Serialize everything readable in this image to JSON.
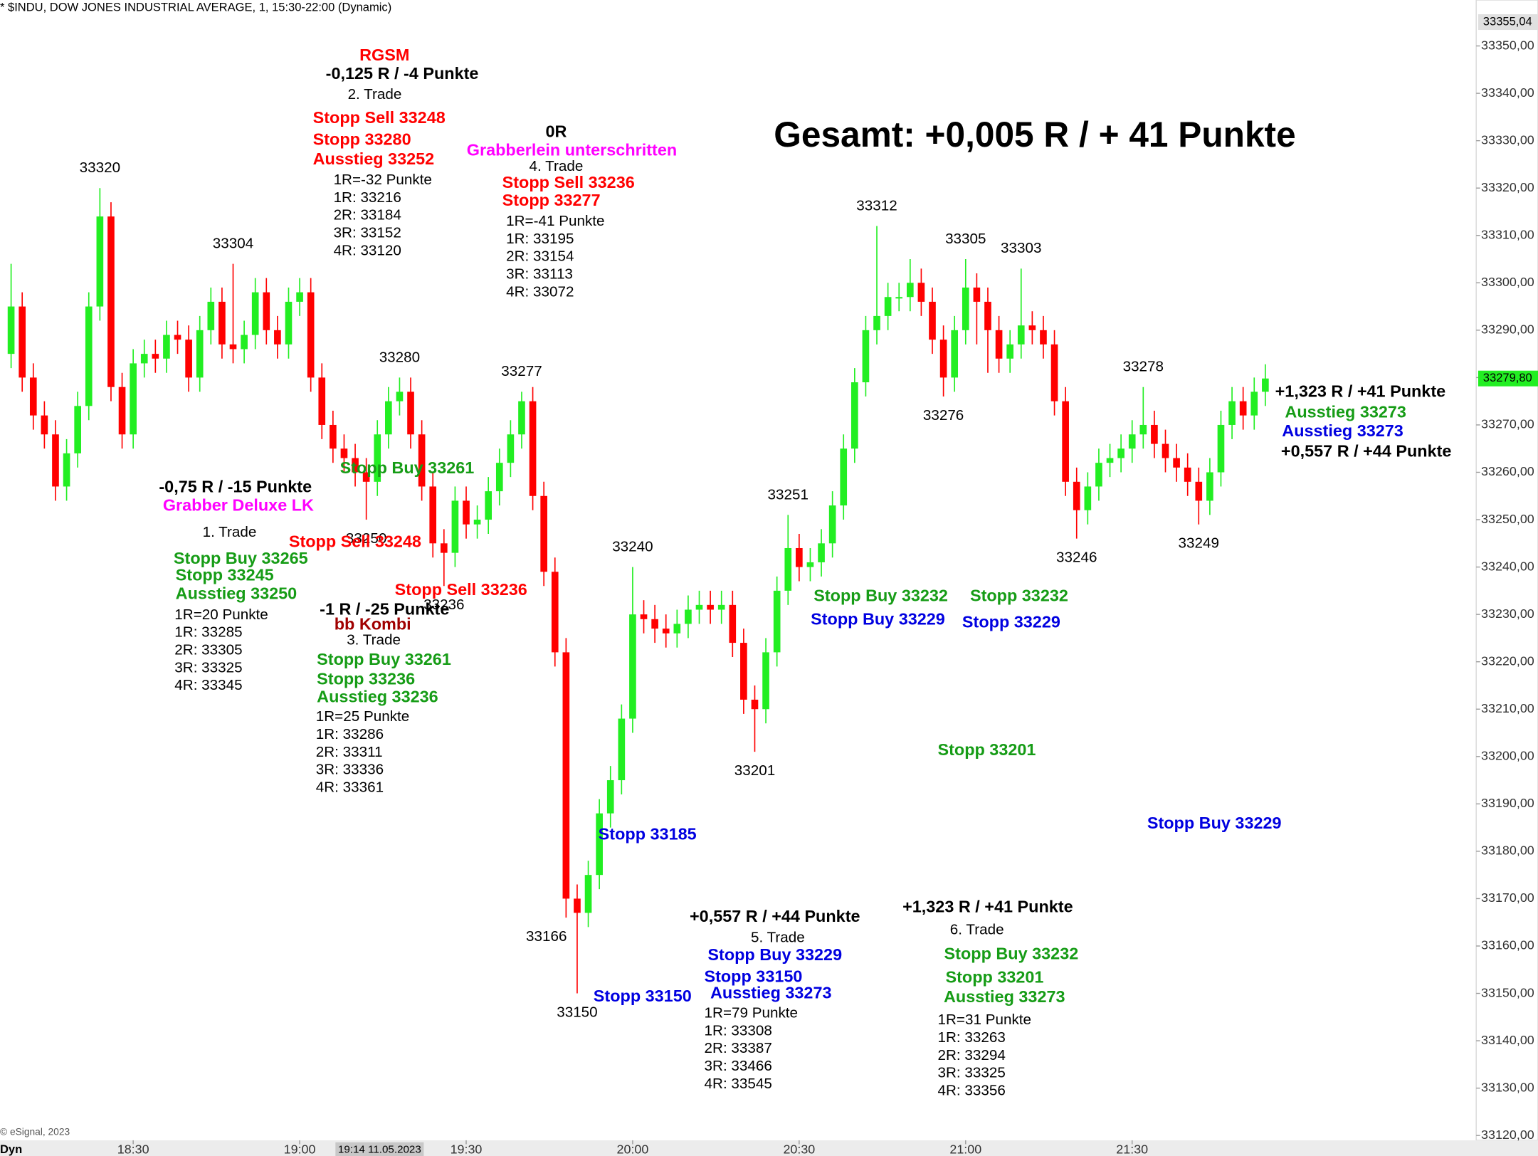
{
  "chart_data": {
    "type": "candlestick",
    "title": "* $INDU, DOW JONES INDUSTRIAL AVERAGE, 1, 15:30-22:00 (Dynamic)",
    "copyright": "© eSignal, 2023",
    "mode_label": "Dyn",
    "cursor_label": "19:14 11.05.2023",
    "up_color": "#22ee22",
    "down_color": "#ff0000",
    "x": [
      "18:08",
      "18:10",
      "18:12",
      "18:14",
      "18:16",
      "18:18",
      "18:20",
      "18:22",
      "18:24",
      "18:26",
      "18:28",
      "18:30",
      "18:32",
      "18:34",
      "18:36",
      "18:38",
      "18:40",
      "18:42",
      "18:44",
      "18:46",
      "18:48",
      "18:50",
      "18:52",
      "18:54",
      "18:56",
      "18:58",
      "19:00",
      "19:02",
      "19:04",
      "19:06",
      "19:08",
      "19:10",
      "19:12",
      "19:14",
      "19:16",
      "19:18",
      "19:20",
      "19:22",
      "19:24",
      "19:26",
      "19:28",
      "19:30",
      "19:32",
      "19:34",
      "19:36",
      "19:38",
      "19:40",
      "19:42",
      "19:44",
      "19:46",
      "19:48",
      "19:50",
      "19:52",
      "19:54",
      "19:56",
      "19:58",
      "20:00",
      "20:02",
      "20:04",
      "20:06",
      "20:08",
      "20:10",
      "20:12",
      "20:14",
      "20:16",
      "20:18",
      "20:20",
      "20:22",
      "20:24",
      "20:26",
      "20:28",
      "20:30",
      "20:32",
      "20:34",
      "20:36",
      "20:38",
      "20:40",
      "20:42",
      "20:44",
      "20:46",
      "20:48",
      "20:50",
      "20:52",
      "20:54",
      "20:56",
      "20:58",
      "21:00",
      "21:02",
      "21:04",
      "21:06",
      "21:08",
      "21:10",
      "21:12",
      "21:14",
      "21:16",
      "21:18",
      "21:20",
      "21:22",
      "21:24",
      "21:26",
      "21:28",
      "21:30",
      "21:32",
      "21:34",
      "21:36",
      "21:38",
      "21:40",
      "21:42",
      "21:44",
      "21:46",
      "21:48",
      "21:50",
      "21:52",
      "21:54"
    ],
    "open": [
      33285,
      33295,
      33280,
      33272,
      33268,
      33257,
      33264,
      33274,
      33295,
      33314,
      33278,
      33268,
      33283,
      33285,
      33284,
      33289,
      33288,
      33280,
      33290,
      33296,
      33287,
      33286,
      33289,
      33298,
      33290,
      33287,
      33296,
      33298,
      33280,
      33270,
      33265,
      33263,
      33260,
      33258,
      33268,
      33275,
      33277,
      33268,
      33257,
      33245,
      33243,
      33254,
      33249,
      33250,
      33256,
      33262,
      33268,
      33275,
      33255,
      33239,
      33222,
      33170,
      33167,
      33175,
      33188,
      33195,
      33208,
      33230,
      33229,
      33227,
      33226,
      33228,
      33231,
      33232,
      33231,
      33232,
      33224,
      33212,
      33210,
      33222,
      33235,
      33244,
      33240,
      33241,
      33245,
      33253,
      33265,
      33279,
      33290,
      33293,
      33297,
      33297,
      33300,
      33296,
      33288,
      33280,
      33290,
      33299,
      33296,
      33290,
      33284,
      33287,
      33291,
      33290,
      33287,
      33275,
      33258,
      33252,
      33257,
      33262,
      33263,
      33265,
      33268,
      33270,
      33266,
      33263,
      33261,
      33258,
      33254,
      33260,
      33270,
      33275,
      33272,
      33277
    ],
    "high": [
      33304,
      33298,
      33283,
      33275,
      33271,
      33267,
      33277,
      33298,
      33320,
      33317,
      33281,
      33286,
      33288,
      33288,
      33292,
      33292,
      33291,
      33293,
      33299,
      33299,
      33304,
      33292,
      33301,
      33301,
      33293,
      33299,
      33301,
      33301,
      33283,
      33273,
      33268,
      33266,
      33263,
      33271,
      33278,
      33280,
      33280,
      33271,
      33260,
      33248,
      33257,
      33257,
      33253,
      33259,
      33265,
      33271,
      33277,
      33278,
      33258,
      33242,
      33225,
      33173,
      33178,
      33191,
      33198,
      33211,
      33240,
      33233,
      33232,
      33230,
      33231,
      33234,
      33235,
      33235,
      33235,
      33235,
      33227,
      33215,
      33225,
      33238,
      33251,
      33247,
      33244,
      33248,
      33256,
      33268,
      33282,
      33293,
      33312,
      33300,
      33300,
      33305,
      33303,
      33299,
      33291,
      33293,
      33305,
      33302,
      33299,
      33293,
      33290,
      33303,
      33294,
      33293,
      33290,
      33278,
      33261,
      33260,
      33265,
      33266,
      33268,
      33271,
      33278,
      33273,
      33269,
      33266,
      33264,
      33261,
      33263,
      33273,
      33278,
      33278,
      33280,
      33282.8
    ],
    "low": [
      33282,
      33277,
      33269,
      33265,
      33254,
      33254,
      33261,
      33271,
      33292,
      33275,
      33265,
      33265,
      33280,
      33281,
      33281,
      33285,
      33277,
      33277,
      33287,
      33284,
      33283,
      33283,
      33286,
      33287,
      33284,
      33284,
      33293,
      33277,
      33267,
      33262,
      33260,
      33257,
      33250,
      33255,
      33265,
      33272,
      33265,
      33254,
      33242,
      33236,
      33240,
      33246,
      33246,
      33247,
      33253,
      33259,
      33265,
      33252,
      33236,
      33219,
      33166,
      33150,
      33164,
      33172,
      33185,
      33192,
      33205,
      33226,
      33224,
      33223,
      33223,
      33225,
      33228,
      33228,
      33228,
      33221,
      33209,
      33201,
      33207,
      33219,
      33232,
      33237,
      33237,
      33238,
      33242,
      33250,
      33262,
      33276,
      33287,
      33290,
      33294,
      33294,
      33293,
      33285,
      33276,
      33277,
      33287,
      33287,
      33281,
      33281,
      33281,
      33284,
      33287,
      33284,
      33272,
      33255,
      33246,
      33249,
      33254,
      33259,
      33260,
      33262,
      33265,
      33263,
      33260,
      33258,
      33255,
      33249,
      33251,
      33257,
      33267,
      33269,
      33269,
      33274
    ],
    "close": [
      33295,
      33280,
      33272,
      33268,
      33257,
      33264,
      33274,
      33295,
      33314,
      33278,
      33268,
      33283,
      33285,
      33284,
      33289,
      33288,
      33280,
      33290,
      33296,
      33287,
      33286,
      33289,
      33298,
      33290,
      33287,
      33296,
      33298,
      33280,
      33270,
      33265,
      33263,
      33260,
      33258,
      33268,
      33275,
      33277,
      33268,
      33257,
      33245,
      33243,
      33254,
      33249,
      33250,
      33256,
      33262,
      33268,
      33275,
      33255,
      33239,
      33222,
      33170,
      33167,
      33175,
      33188,
      33195,
      33208,
      33230,
      33229,
      33227,
      33226,
      33228,
      33231,
      33232,
      33231,
      33232,
      33224,
      33212,
      33210,
      33222,
      33235,
      33244,
      33240,
      33241,
      33245,
      33253,
      33265,
      33279,
      33290,
      33293,
      33297,
      33297,
      33300,
      33296,
      33288,
      33280,
      33290,
      33299,
      33296,
      33290,
      33284,
      33287,
      33291,
      33290,
      33287,
      33275,
      33258,
      33252,
      33257,
      33262,
      33263,
      33265,
      33268,
      33270,
      33266,
      33263,
      33261,
      33258,
      33254,
      33260,
      33270,
      33275,
      33272,
      33277,
      33279.8
    ],
    "xlim": [
      "18:06",
      "22:32"
    ],
    "xticks": [
      "18:30",
      "19:00",
      "19:30",
      "20:00",
      "20:30",
      "21:00",
      "21:30"
    ],
    "ylim": [
      33119.4,
      33359.7
    ],
    "yticks": [
      {
        "value": 33120,
        "label": "33120,00"
      },
      {
        "value": 33130,
        "label": "33130,00"
      },
      {
        "value": 33140,
        "label": "33140,00"
      },
      {
        "value": 33150,
        "label": "33150,00"
      },
      {
        "value": 33160,
        "label": "33160,00"
      },
      {
        "value": 33170,
        "label": "33170,00"
      },
      {
        "value": 33180,
        "label": "33180,00"
      },
      {
        "value": 33190,
        "label": "33190,00"
      },
      {
        "value": 33200,
        "label": "33200,00"
      },
      {
        "value": 33210,
        "label": "33210,00"
      },
      {
        "value": 33220,
        "label": "33220,00"
      },
      {
        "value": 33230,
        "label": "33230,00"
      },
      {
        "value": 33240,
        "label": "33240,00"
      },
      {
        "value": 33250,
        "label": "33250,00"
      },
      {
        "value": 33260,
        "label": "33260,00"
      },
      {
        "value": 33270,
        "label": "33270,00"
      },
      {
        "value": 33280,
        "label": "33280,00"
      },
      {
        "value": 33290,
        "label": "33290,00"
      },
      {
        "value": 33300,
        "label": "33300,00"
      },
      {
        "value": 33310,
        "label": "33310,00"
      },
      {
        "value": 33320,
        "label": "33320,00"
      },
      {
        "value": 33330,
        "label": "33330,00"
      },
      {
        "value": 33340,
        "label": "33340,00"
      },
      {
        "value": 33350,
        "label": "33350,00"
      }
    ],
    "price_marks": [
      {
        "value": 33355.04,
        "label": "33355,04",
        "color": "#e0e0e0"
      },
      {
        "value": 33279.8,
        "label": "33279,80",
        "color": "#22ee22"
      }
    ],
    "annotations": [
      {
        "text": "RGSM",
        "color": "#ff0000",
        "bold": true
      },
      {
        "text": "-0,125 R / -4 Punkte",
        "color": "#000000",
        "bold": true
      },
      {
        "text": "2. Trade",
        "color": "#000000"
      },
      {
        "text": "Stopp Sell 33248",
        "color": "#ff0000",
        "bold": true
      },
      {
        "text": "Stopp 33280",
        "color": "#ff0000",
        "bold": true
      },
      {
        "text": "Ausstieg 33252",
        "color": "#ff0000",
        "bold": true
      },
      {
        "text": "1R=-32 Punkte",
        "color": "#000000"
      },
      {
        "text": "1R: 33216",
        "color": "#000000"
      },
      {
        "text": "2R: 33184",
        "color": "#000000"
      },
      {
        "text": "3R: 33152",
        "color": "#000000"
      },
      {
        "text": "4R: 33120",
        "color": "#000000"
      },
      {
        "text": "0R",
        "color": "#000000",
        "bold": true
      },
      {
        "text": "Grabberlein unterschritten",
        "color": "#ff00ff",
        "bold": true
      },
      {
        "text": "4. Trade",
        "color": "#000000"
      },
      {
        "text": "Stopp Sell 33236",
        "color": "#ff0000",
        "bold": true
      },
      {
        "text": "Stopp 33277",
        "color": "#ff0000",
        "bold": true
      },
      {
        "text": "1R=-41 Punkte",
        "color": "#000000"
      },
      {
        "text": "1R: 33195",
        "color": "#000000"
      },
      {
        "text": "2R: 33154",
        "color": "#000000"
      },
      {
        "text": "3R: 33113",
        "color": "#000000"
      },
      {
        "text": "4R: 33072",
        "color": "#000000"
      },
      {
        "text": "Gesamt: +0,005 R / + 41 Punkte",
        "color": "#000000",
        "bold": true
      },
      {
        "text": "-0,75 R / -15 Punkte",
        "color": "#000000",
        "bold": true
      },
      {
        "text": "Grabber Deluxe LK",
        "color": "#ff00ff",
        "bold": true
      },
      {
        "text": "1. Trade",
        "color": "#000000"
      },
      {
        "text": "Stopp Buy 33265",
        "color": "#169c16",
        "bold": true
      },
      {
        "text": "Stopp 33245",
        "color": "#169c16",
        "bold": true
      },
      {
        "text": "Ausstieg 33250",
        "color": "#169c16",
        "bold": true
      },
      {
        "text": "1R=20 Punkte",
        "color": "#000000"
      },
      {
        "text": "1R: 33285",
        "color": "#000000"
      },
      {
        "text": "2R: 33305",
        "color": "#000000"
      },
      {
        "text": "3R: 33325",
        "color": "#000000"
      },
      {
        "text": "4R: 33345",
        "color": "#000000"
      },
      {
        "text": "Stopp Buy 33261",
        "color": "#169c16",
        "bold": true
      },
      {
        "text": "Stopp Sell 33248",
        "color": "#ff0000",
        "bold": true
      },
      {
        "text": "Stopp Sell 33236",
        "color": "#ff0000",
        "bold": true
      },
      {
        "text": "-1 R / -25 Punkte",
        "color": "#000000",
        "bold": true
      },
      {
        "text": "bb Kombi",
        "color": "#a00000",
        "bold": true
      },
      {
        "text": "3. Trade",
        "color": "#000000"
      },
      {
        "text": "Stopp Buy 33261",
        "color": "#169c16",
        "bold": true
      },
      {
        "text": "Stopp 33236",
        "color": "#169c16",
        "bold": true
      },
      {
        "text": "Ausstieg 33236",
        "color": "#169c16",
        "bold": true
      },
      {
        "text": "1R=25 Punkte",
        "color": "#000000"
      },
      {
        "text": "1R: 33286",
        "color": "#000000"
      },
      {
        "text": "2R: 33311",
        "color": "#000000"
      },
      {
        "text": "3R: 33336",
        "color": "#000000"
      },
      {
        "text": "4R: 33361",
        "color": "#000000"
      },
      {
        "text": "Stopp 33185",
        "color": "#0000e0",
        "bold": true
      },
      {
        "text": "Stopp 33150",
        "color": "#0000e0",
        "bold": true
      },
      {
        "text": "+0,557 R / +44 Punkte",
        "color": "#000000",
        "bold": true
      },
      {
        "text": "5. Trade",
        "color": "#000000"
      },
      {
        "text": "Stopp Buy 33229",
        "color": "#0000e0",
        "bold": true
      },
      {
        "text": "Stopp 33150",
        "color": "#0000e0",
        "bold": true
      },
      {
        "text": "Ausstieg 33273",
        "color": "#0000e0",
        "bold": true
      },
      {
        "text": "1R=79 Punkte",
        "color": "#000000"
      },
      {
        "text": "1R: 33308",
        "color": "#000000"
      },
      {
        "text": "2R: 33387",
        "color": "#000000"
      },
      {
        "text": "3R: 33466",
        "color": "#000000"
      },
      {
        "text": "4R: 33545",
        "color": "#000000"
      },
      {
        "text": "Stopp Buy 33232",
        "color": "#169c16",
        "bold": true
      },
      {
        "text": "Stopp 33232",
        "color": "#169c16",
        "bold": true
      },
      {
        "text": "Stopp Buy 33229",
        "color": "#0000e0",
        "bold": true
      },
      {
        "text": "Stopp 33229",
        "color": "#0000e0",
        "bold": true
      },
      {
        "text": "Stopp 33201",
        "color": "#169c16",
        "bold": true
      },
      {
        "text": "Stopp Buy 33229",
        "color": "#0000e0",
        "bold": true
      },
      {
        "text": "+1,323 R / +41 Punkte",
        "color": "#000000",
        "bold": true
      },
      {
        "text": "6. Trade",
        "color": "#000000"
      },
      {
        "text": "Stopp Buy 33232",
        "color": "#169c16",
        "bold": true
      },
      {
        "text": "Stopp 33201",
        "color": "#169c16",
        "bold": true
      },
      {
        "text": "Ausstieg 33273",
        "color": "#169c16",
        "bold": true
      },
      {
        "text": "1R=31 Punkte",
        "color": "#000000"
      },
      {
        "text": "1R: 33263",
        "color": "#000000"
      },
      {
        "text": "2R: 33294",
        "color": "#000000"
      },
      {
        "text": "3R: 33325",
        "color": "#000000"
      },
      {
        "text": "4R: 33356",
        "color": "#000000"
      },
      {
        "text": "+1,323 R / +41 Punkte",
        "color": "#000000",
        "bold": true
      },
      {
        "text": "Ausstieg 33273",
        "color": "#169c16",
        "bold": true
      },
      {
        "text": "Ausstieg 33273",
        "color": "#0000e0",
        "bold": true
      },
      {
        "text": "+0,557 R / +44 Punkte",
        "color": "#000000",
        "bold": true
      }
    ]
  }
}
